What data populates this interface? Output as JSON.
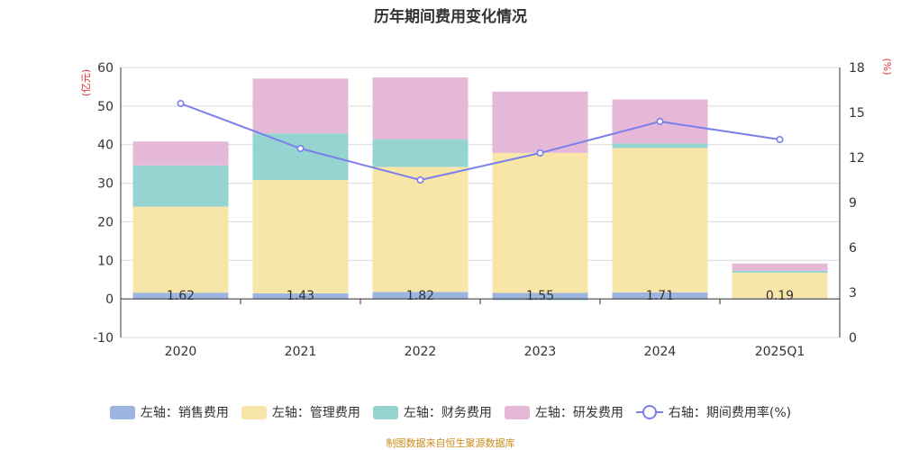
{
  "chart_data": {
    "type": "bar",
    "title": "历年期间费用变化情况",
    "categories": [
      "2020",
      "2021",
      "2022",
      "2023",
      "2024",
      "2025Q1"
    ],
    "stacked": true,
    "left_axis": {
      "label": "(亿元)",
      "min": -10,
      "max": 60,
      "ticks": [
        -10,
        0,
        10,
        20,
        30,
        40,
        50,
        60
      ]
    },
    "right_axis": {
      "label": "(%)",
      "min": 0,
      "max": 18,
      "ticks": [
        0,
        3,
        6,
        9,
        12,
        15,
        18
      ]
    },
    "series": [
      {
        "name": "左轴：销售费用",
        "type": "bar",
        "axis": "left",
        "color": "#9bb5e0",
        "values": [
          1.62,
          1.43,
          1.82,
          1.55,
          1.71,
          0.19
        ],
        "data_labels": [
          "1.62",
          "1.43",
          "1.82",
          "1.55",
          "1.71",
          "0.19"
        ]
      },
      {
        "name": "左轴：管理费用",
        "type": "bar",
        "axis": "left",
        "color": "#f8e6a8",
        "values": [
          22.3,
          29.4,
          32.4,
          36.3,
          37.4,
          6.6
        ]
      },
      {
        "name": "左轴：财务费用",
        "type": "bar",
        "axis": "left",
        "color": "#96d4d2",
        "values": [
          10.7,
          12.1,
          7.2,
          -0.3,
          1.2,
          0.5
        ]
      },
      {
        "name": "左轴：研发费用",
        "type": "bar",
        "axis": "left",
        "color": "#e6b8d8",
        "values": [
          6.2,
          14.2,
          16.0,
          15.9,
          11.4,
          1.9
        ]
      },
      {
        "name": "右轴：期间费用率(%)",
        "type": "line",
        "axis": "right",
        "color": "#7b7fea",
        "values": [
          15.6,
          12.6,
          10.5,
          12.3,
          14.4,
          13.2
        ]
      }
    ],
    "grid": true,
    "legend_position": "bottom"
  },
  "source_note": "制图数据来自恒生聚源数据库"
}
